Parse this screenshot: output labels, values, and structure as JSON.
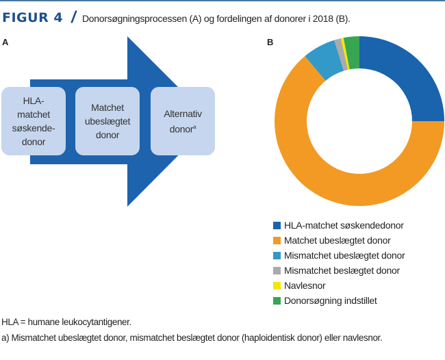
{
  "figure": {
    "label": "FIGUR 4",
    "title": "Donorsøgningsprocessen (A) og fordelingen af donorer i 2018 (B)."
  },
  "panel_a": {
    "label": "A",
    "steps": [
      {
        "lines": [
          "HLA-",
          "matchet",
          "søskende-",
          "donor"
        ]
      },
      {
        "lines": [
          "Matchet",
          "ubeslægtet",
          "donor"
        ]
      },
      {
        "lines": [
          "Alternativ",
          "donor"
        ],
        "superscript": "a"
      }
    ],
    "colors": {
      "arrow": "#1d63ad",
      "box": "#c6d6ee"
    }
  },
  "chart_data": {
    "type": "pie",
    "variant": "donut",
    "panel_label": "B",
    "title": "Fordelingen af donorer i 2018",
    "categories": [
      "HLA-matchet søskendedonor",
      "Matchet ubeslægtet donor",
      "Mismatchet ubeslægtet donor",
      "Mismatchet beslægtet donor",
      "Navlesnor",
      "Donorsøgning indstillet"
    ],
    "values": [
      25.0,
      63.9,
      6.3,
      1.3,
      0.5,
      3.0
    ],
    "unit": "%",
    "colors": [
      "#1a63ad",
      "#f29a24",
      "#3399c9",
      "#aaaaaa",
      "#f5e800",
      "#37a653"
    ],
    "start_angle_deg": 0,
    "direction": "clockwise",
    "legend_position": "bottom"
  },
  "footnotes": [
    "HLA = humane leukocytantigener.",
    "a) Mismatchet ubeslægtet donor, mismatchet beslægtet donor (haploidentisk donor) eller navlesnor."
  ]
}
